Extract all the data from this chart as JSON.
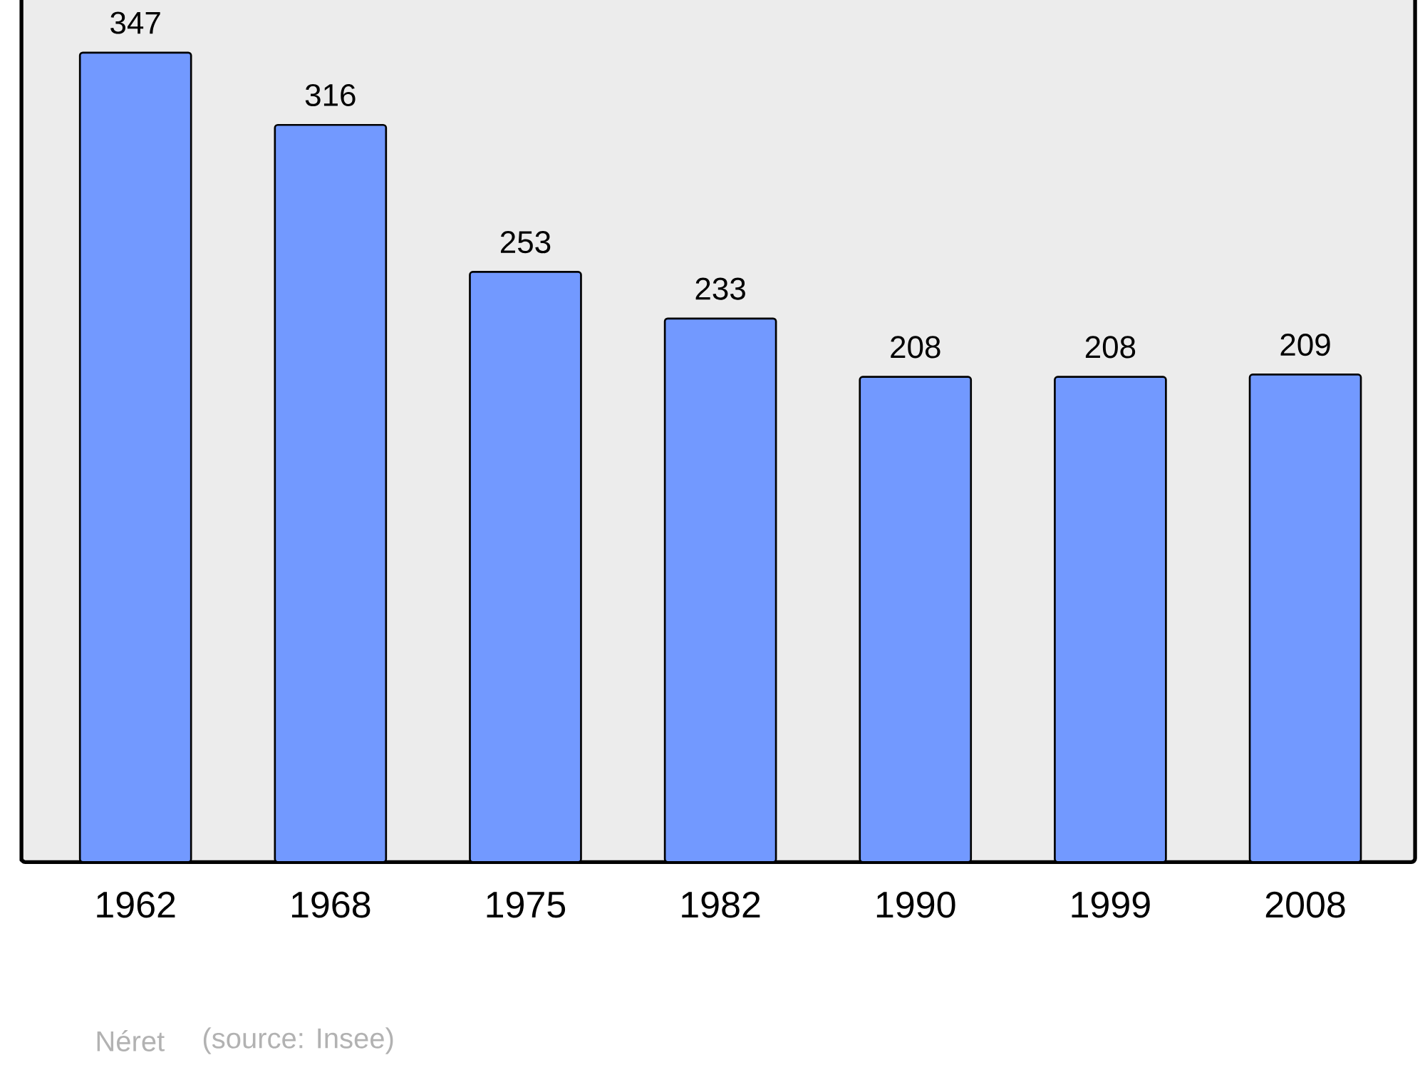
{
  "chart_data": {
    "type": "bar",
    "categories": [
      "1962",
      "1968",
      "1975",
      "1982",
      "1990",
      "1999",
      "2008"
    ],
    "values": [
      347,
      316,
      253,
      233,
      208,
      208,
      209
    ],
    "color": "#7299ff",
    "ylim": [
      0,
      382
    ],
    "data_labels": true,
    "tick_labels": "x",
    "annotations": [
      "Néret",
      "(source: Insee)"
    ]
  }
}
